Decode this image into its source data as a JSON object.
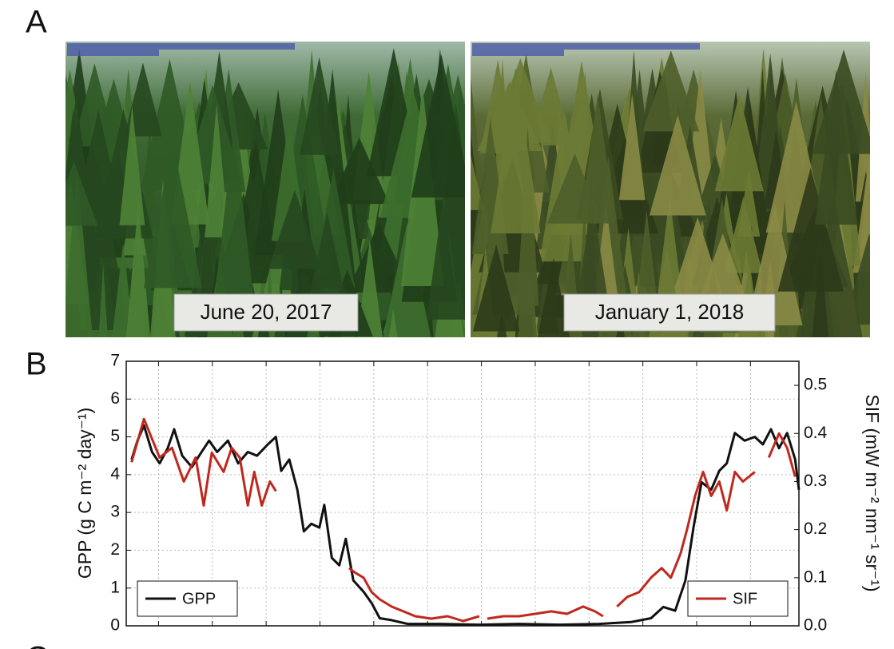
{
  "figure": {
    "panel_a_label": "A",
    "photos": [
      {
        "caption": "June 20, 2017"
      },
      {
        "caption": "January 1, 2018"
      }
    ],
    "panel_b_label": "B",
    "panel_c_label": "C"
  },
  "chart_data": {
    "type": "line",
    "y_label": "GPP (g C m⁻² day⁻¹)",
    "y2_label": "SIF (mW m⁻² nm⁻¹ sr⁻¹)",
    "xlim": [
      -0.6,
      11.9
    ],
    "xticks": [
      0,
      1,
      2,
      3,
      4,
      5,
      6,
      7,
      8,
      9,
      10,
      11
    ],
    "ylim": [
      0,
      7
    ],
    "yticks": [
      0,
      1,
      2,
      3,
      4,
      5,
      6,
      7
    ],
    "y2lim": [
      0,
      0.55
    ],
    "y2ticks": [
      {
        "value": 0,
        "label": "0.0"
      },
      0.1,
      0.2,
      0.3,
      0.4,
      0.5
    ],
    "grid": true,
    "series": [
      {
        "name": "GPP",
        "color": "#111111",
        "legend": "lower left",
        "x": [
          -0.5,
          -0.39,
          -0.27,
          -0.12,
          0.02,
          0.17,
          0.29,
          0.44,
          0.62,
          0.8,
          0.94,
          1.09,
          1.29,
          1.48,
          1.66,
          1.83,
          2.03,
          2.18,
          2.28,
          2.43,
          2.58,
          2.7,
          2.84,
          2.99,
          3.08,
          3.22,
          3.36,
          3.48,
          3.62,
          3.81,
          3.96,
          4.11,
          4.33,
          4.63,
          5.22,
          5.96,
          6.7,
          7.45,
          8.19,
          8.78,
          9.15,
          9.38,
          9.6,
          9.79,
          9.94,
          10.09,
          10.27,
          10.42,
          10.56,
          10.71,
          10.89,
          11.08,
          11.23,
          11.38,
          11.53,
          11.68,
          11.83,
          11.9
        ],
        "values": [
          4.4,
          4.9,
          5.3,
          4.6,
          4.3,
          4.7,
          5.2,
          4.5,
          4.2,
          4.6,
          4.9,
          4.6,
          4.9,
          4.3,
          4.6,
          4.5,
          4.8,
          5.0,
          4.1,
          4.4,
          3.6,
          2.5,
          2.7,
          2.6,
          3.2,
          1.8,
          1.6,
          2.3,
          1.2,
          0.9,
          0.6,
          0.2,
          0.15,
          0.05,
          0.05,
          0.03,
          0.05,
          0.03,
          0.05,
          0.1,
          0.2,
          0.5,
          0.4,
          1.2,
          2.6,
          3.8,
          3.6,
          4.1,
          4.3,
          5.1,
          4.9,
          5.0,
          4.8,
          5.2,
          4.7,
          5.1,
          4.4,
          3.6
        ]
      },
      {
        "name": "SIF",
        "color": "#c0281e",
        "legend": "lower right",
        "axis": "y2",
        "x": [
          -0.5,
          -0.27,
          0.02,
          0.25,
          0.47,
          0.69,
          0.84,
          0.99,
          1.21,
          1.36,
          1.51,
          1.66,
          1.78,
          1.92,
          2.07,
          2.18,
          2.9,
          3.54,
          3.66,
          3.81,
          3.96,
          4.11,
          4.33,
          4.55,
          4.77,
          5.07,
          5.37,
          5.66,
          5.96,
          6.03,
          6.11,
          6.41,
          6.7,
          7.0,
          7.3,
          7.59,
          7.89,
          8.11,
          8.26,
          8.4,
          8.52,
          8.71,
          8.93,
          9.15,
          9.35,
          9.52,
          9.7,
          9.82,
          9.97,
          10.12,
          10.27,
          10.42,
          10.56,
          10.71,
          10.86,
          11.08,
          11.2,
          11.34,
          11.53,
          11.68,
          11.83
        ],
        "values": [
          0.34,
          0.43,
          0.35,
          0.37,
          0.3,
          0.35,
          0.25,
          0.36,
          0.32,
          0.37,
          0.35,
          0.25,
          0.32,
          0.25,
          0.3,
          0.28,
          null,
          0.12,
          0.11,
          0.1,
          0.07,
          0.055,
          0.04,
          0.03,
          0.02,
          0.015,
          0.02,
          0.01,
          0.02,
          null,
          0.015,
          0.02,
          0.02,
          0.025,
          0.03,
          0.025,
          0.04,
          0.03,
          0.02,
          null,
          0.04,
          0.06,
          0.07,
          0.1,
          0.12,
          0.1,
          0.15,
          0.2,
          0.27,
          0.32,
          0.27,
          0.3,
          0.24,
          0.32,
          0.3,
          0.32,
          null,
          0.35,
          0.4,
          0.37,
          0.31
        ]
      }
    ]
  }
}
